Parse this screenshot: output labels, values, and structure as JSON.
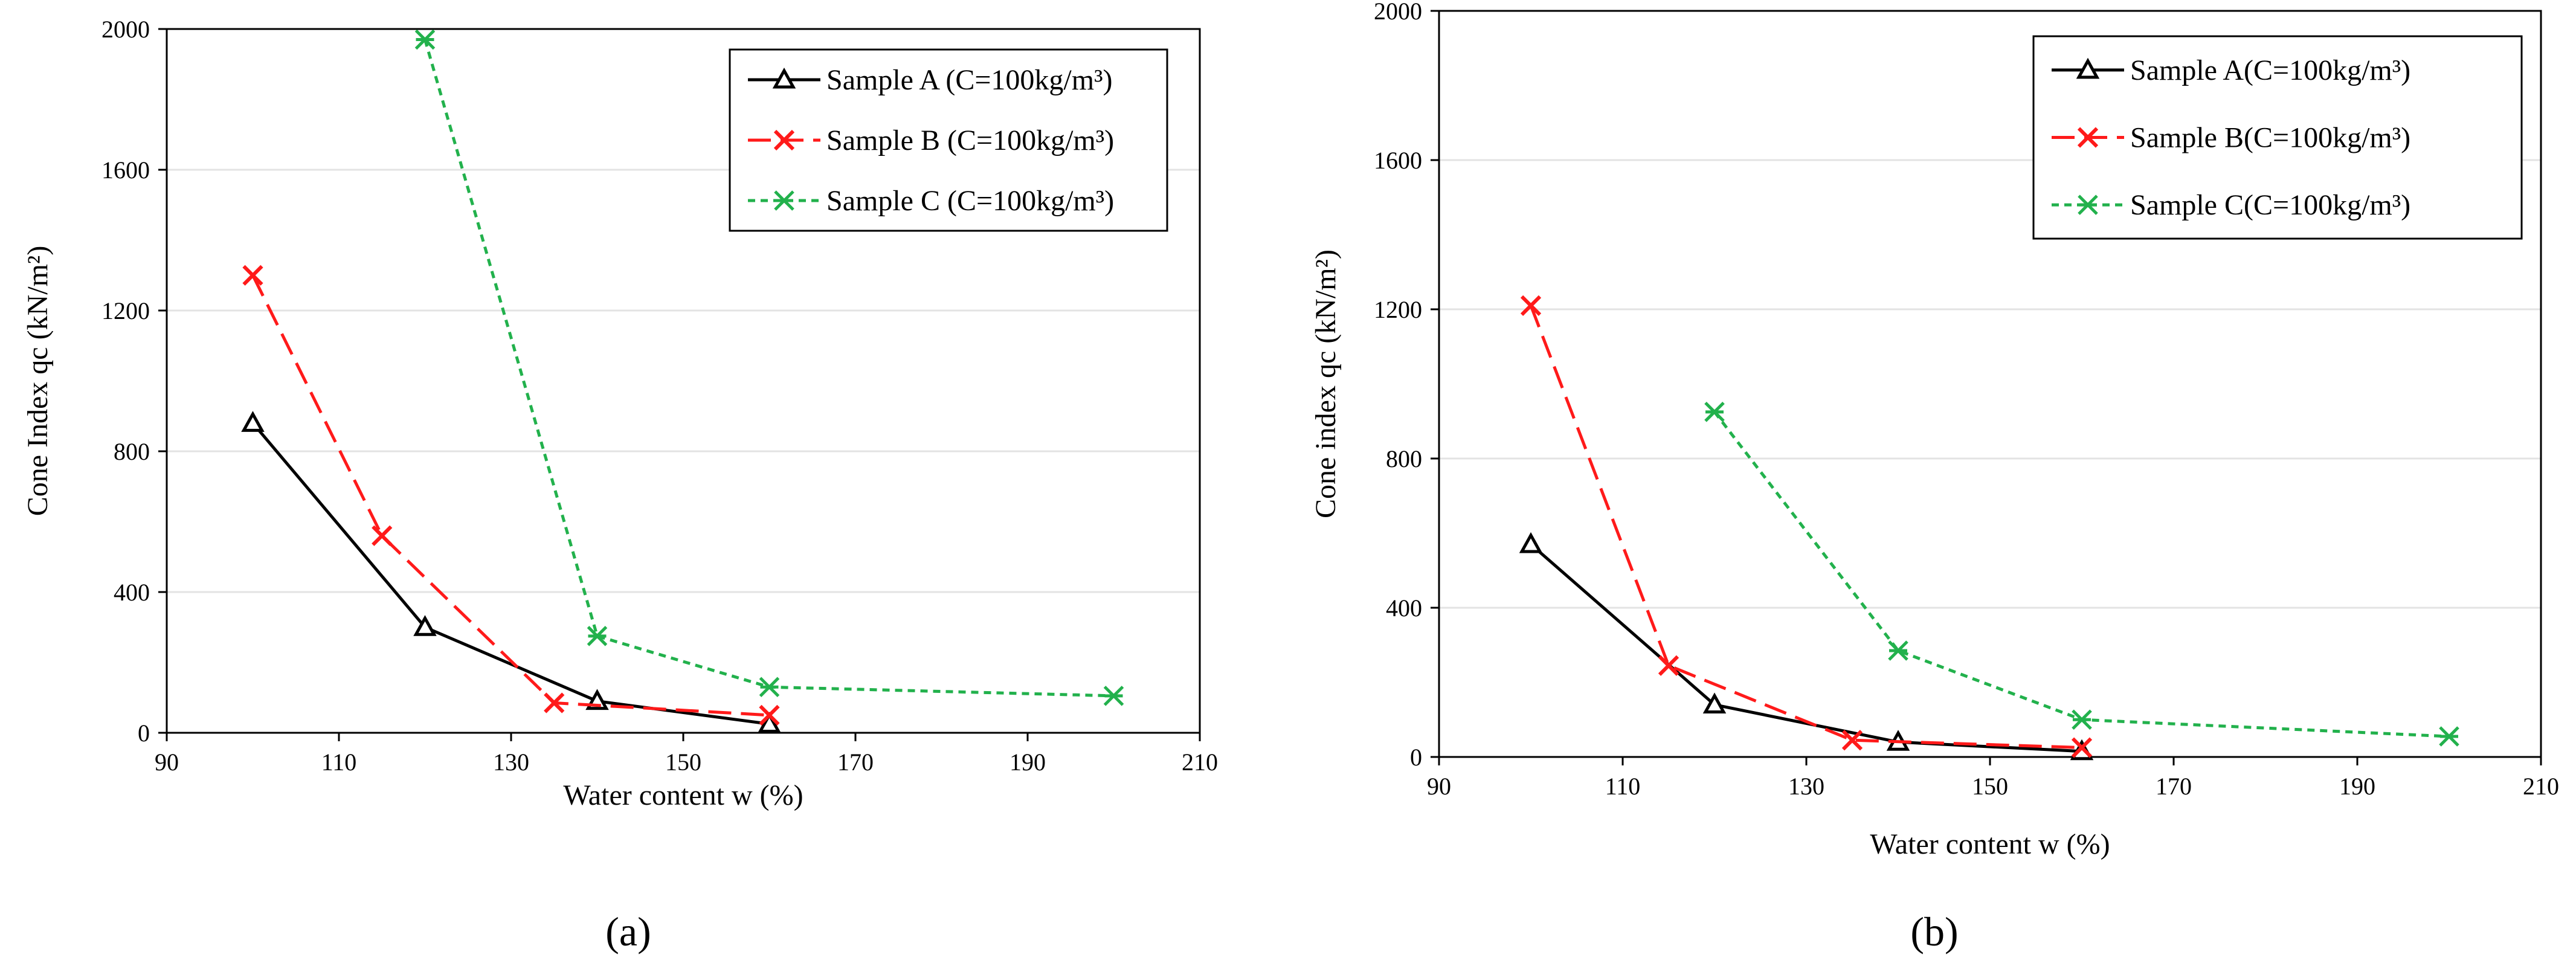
{
  "chart_data": [
    {
      "type": "line",
      "panel_label": "(a)",
      "xlabel": "Water content w (%)",
      "ylabel": "Cone Index qc (kN/m²)",
      "xlim": [
        90,
        210
      ],
      "ylim": [
        0,
        2000
      ],
      "xticks": [
        "90",
        "110",
        "130",
        "150",
        "170",
        "190",
        "210"
      ],
      "yticks": [
        "0",
        "400",
        "800",
        "1200",
        "1600",
        "2000"
      ],
      "grid": "horizontal",
      "legend_position": "top-right",
      "series": [
        {
          "name": "Sample A (C=100kg/m³)",
          "color": "#000000",
          "line": "solid",
          "marker": "triangle",
          "points": [
            [
              100,
              880
            ],
            [
              120,
              300
            ],
            [
              140,
              90
            ],
            [
              160,
              25
            ]
          ]
        },
        {
          "name": "Sample B (C=100kg/m³)",
          "color": "#ff1a1a",
          "line": "dashed",
          "marker": "x",
          "points": [
            [
              100,
              1300
            ],
            [
              115,
              560
            ],
            [
              135,
              85
            ],
            [
              160,
              50
            ]
          ]
        },
        {
          "name": "Sample C (C=100kg/m³)",
          "color": "#22b14c",
          "line": "dotted",
          "marker": "asterisk",
          "points": [
            [
              120,
              1970
            ],
            [
              140,
              275
            ],
            [
              160,
              130
            ],
            [
              200,
              105
            ]
          ]
        }
      ]
    },
    {
      "type": "line",
      "panel_label": "(b)",
      "xlabel": "Water content w (%)",
      "ylabel": "Cone index qc (kN/m²)",
      "xlim": [
        90,
        210
      ],
      "ylim": [
        0,
        2000
      ],
      "xticks": [
        "90",
        "110",
        "130",
        "150",
        "170",
        "190",
        "210"
      ],
      "yticks": [
        "0",
        "400",
        "800",
        "1200",
        "1600",
        "2000"
      ],
      "grid": "horizontal",
      "legend_position": "top-right",
      "series": [
        {
          "name": "Sample A(C=100kg/m³)",
          "color": "#000000",
          "line": "solid",
          "marker": "triangle",
          "points": [
            [
              100,
              570
            ],
            [
              120,
              140
            ],
            [
              140,
              40
            ],
            [
              160,
              15
            ]
          ]
        },
        {
          "name": "Sample B(C=100kg/m³)",
          "color": "#ff1a1a",
          "line": "dashed",
          "marker": "x",
          "points": [
            [
              100,
              1210
            ],
            [
              115,
              245
            ],
            [
              135,
              45
            ],
            [
              160,
              25
            ]
          ]
        },
        {
          "name": "Sample C(C=100kg/m³)",
          "color": "#22b14c",
          "line": "dotted",
          "marker": "asterisk",
          "points": [
            [
              120,
              925
            ],
            [
              140,
              285
            ],
            [
              160,
              100
            ],
            [
              200,
              55
            ]
          ]
        }
      ]
    }
  ]
}
